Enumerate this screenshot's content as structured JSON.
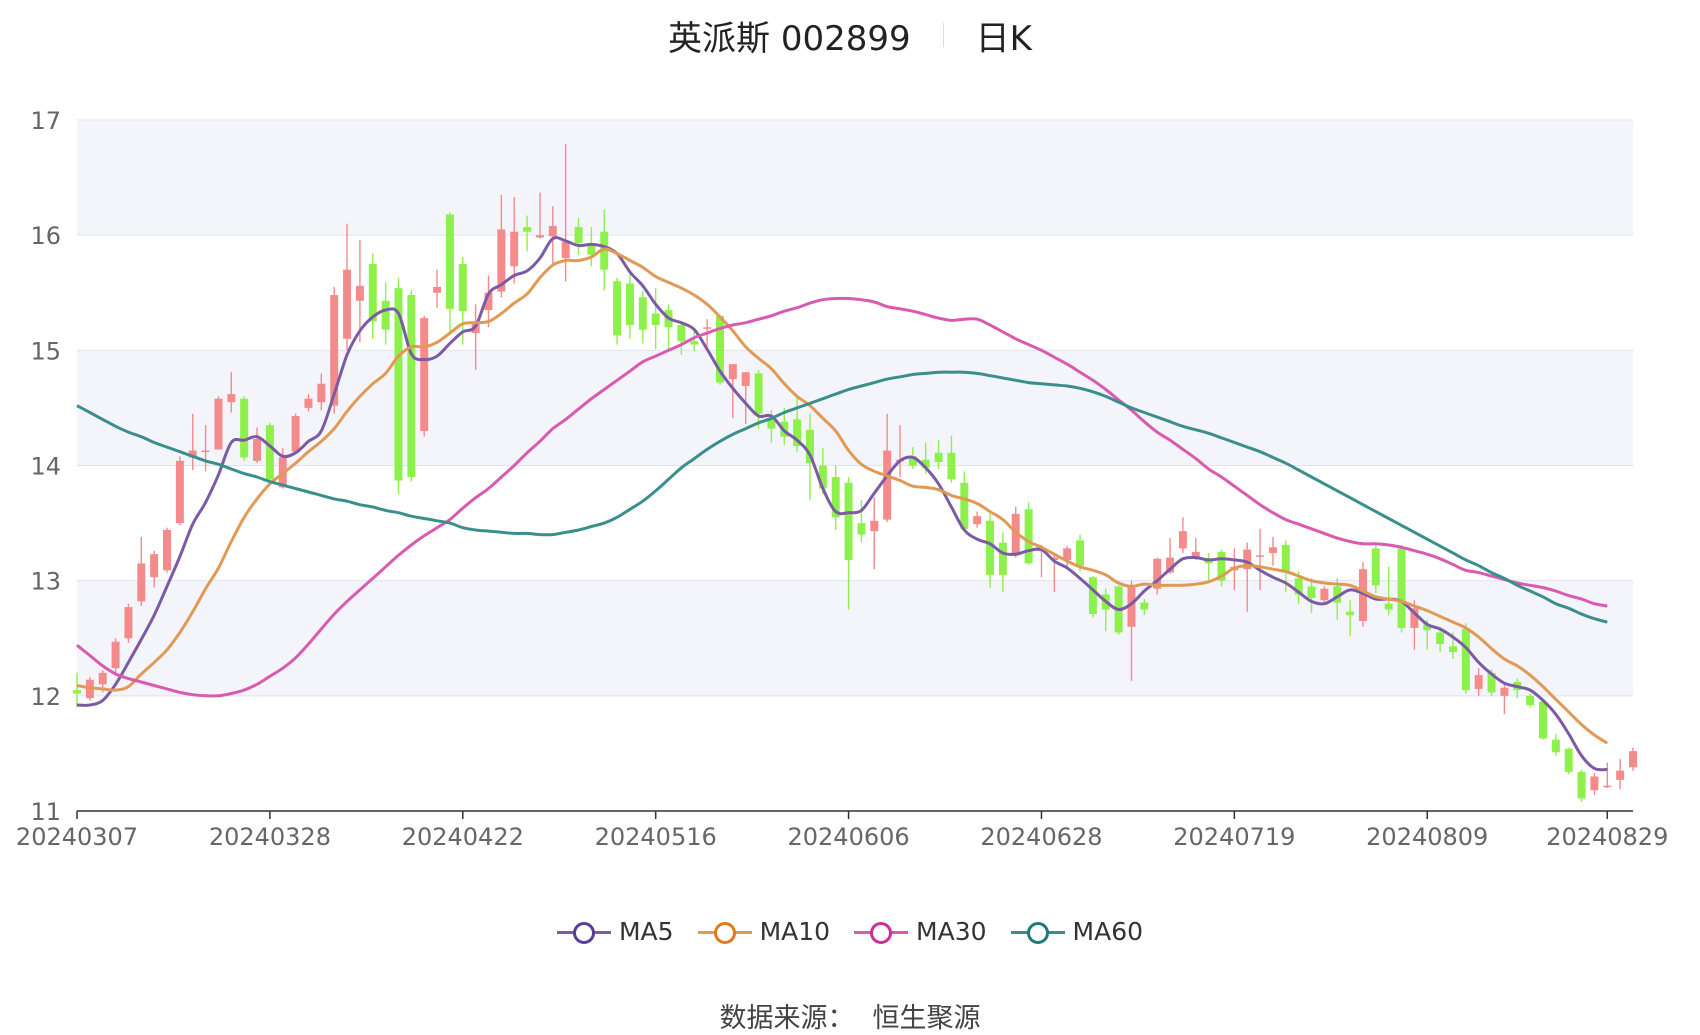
{
  "header": {
    "stock_name": "英派斯 002899",
    "period": "日K"
  },
  "source": {
    "label": "数据来源：",
    "value": "恒生聚源"
  },
  "colors": {
    "up": "#f58a8a",
    "down": "#8ef04a",
    "grid": "#dfe3f3",
    "band": "#f4f5fb",
    "axis": "#666666"
  },
  "chart_data": {
    "type": "candlestick",
    "ylim": [
      11,
      17
    ],
    "yticks": [
      11,
      12,
      13,
      14,
      15,
      16,
      17
    ],
    "x_tick_labels": [
      "20240307",
      "20240328",
      "20240422",
      "20240516",
      "20240606",
      "20240628",
      "20240719",
      "20240809",
      "20240829"
    ],
    "x_tick_index": [
      0,
      15,
      30,
      45,
      60,
      75,
      90,
      105,
      119
    ],
    "legend_position": "bottom",
    "series": [
      {
        "name": "MA5",
        "color": "#7b5aa6",
        "values": [
          11.92,
          11.92,
          11.96,
          12.1,
          12.29,
          12.49,
          12.7,
          12.95,
          13.21,
          13.49,
          13.68,
          13.92,
          14.2,
          14.22,
          14.25,
          14.17,
          14.08,
          14.11,
          14.21,
          14.3,
          14.62,
          14.96,
          15.17,
          15.29,
          15.35,
          15.32,
          14.97,
          14.92,
          14.95,
          15.06,
          15.16,
          15.21,
          15.49,
          15.57,
          15.65,
          15.69,
          15.8,
          15.97,
          15.95,
          15.91,
          15.92,
          15.9,
          15.84,
          15.68,
          15.56,
          15.4,
          15.28,
          15.24,
          15.18,
          15.01,
          14.82,
          14.67,
          14.54,
          14.43,
          14.43,
          14.3,
          14.22,
          14.09,
          13.8,
          13.6,
          13.59,
          13.61,
          13.76,
          13.91,
          14.04,
          14.07,
          13.98,
          13.84,
          13.64,
          13.44,
          13.36,
          13.32,
          13.24,
          13.23,
          13.26,
          13.27,
          13.17,
          13.11,
          13.02,
          12.92,
          12.82,
          12.75,
          12.8,
          12.91,
          13.0,
          13.1,
          13.19,
          13.2,
          13.18,
          13.19,
          13.18,
          13.16,
          13.09,
          13.03,
          12.98,
          12.9,
          12.82,
          12.8,
          12.86,
          12.92,
          12.89,
          12.84,
          12.84,
          12.82,
          12.72,
          12.62,
          12.58,
          12.51,
          12.42,
          12.29,
          12.19,
          12.11,
          12.08,
          12.05,
          11.96,
          11.84,
          11.67,
          11.48,
          11.37,
          11.36
        ]
      },
      {
        "name": "MA10",
        "color": "#e09a55",
        "values": [
          12.09,
          12.07,
          12.06,
          12.05,
          12.08,
          12.19,
          12.29,
          12.4,
          12.55,
          12.73,
          12.93,
          13.11,
          13.34,
          13.55,
          13.71,
          13.84,
          13.93,
          14.02,
          14.12,
          14.21,
          14.32,
          14.47,
          14.6,
          14.71,
          14.8,
          14.95,
          15.03,
          15.03,
          15.07,
          15.15,
          15.23,
          15.24,
          15.25,
          15.32,
          15.41,
          15.49,
          15.63,
          15.74,
          15.78,
          15.78,
          15.81,
          15.88,
          15.84,
          15.78,
          15.72,
          15.64,
          15.59,
          15.54,
          15.48,
          15.4,
          15.29,
          15.17,
          15.03,
          14.93,
          14.84,
          14.71,
          14.6,
          14.52,
          14.41,
          14.3,
          14.13,
          14.01,
          13.95,
          13.91,
          13.87,
          13.82,
          13.81,
          13.79,
          13.74,
          13.71,
          13.67,
          13.6,
          13.53,
          13.42,
          13.34,
          13.29,
          13.23,
          13.17,
          13.12,
          13.09,
          13.05,
          12.98,
          12.95,
          12.97,
          12.96,
          12.96,
          12.96,
          12.97,
          12.99,
          13.04,
          13.11,
          13.13,
          13.12,
          13.1,
          13.08,
          13.04,
          13.0,
          12.98,
          12.97,
          12.96,
          12.91,
          12.86,
          12.84,
          12.82,
          12.78,
          12.74,
          12.69,
          12.64,
          12.59,
          12.51,
          12.41,
          12.32,
          12.26,
          12.18,
          12.08,
          11.97,
          11.86,
          11.75,
          11.66,
          11.59
        ]
      },
      {
        "name": "MA30",
        "color": "#d85bb0",
        "values": [
          12.44,
          12.35,
          12.26,
          12.19,
          12.15,
          12.12,
          12.09,
          12.06,
          12.03,
          12.01,
          12.0,
          12.0,
          12.02,
          12.05,
          12.1,
          12.17,
          12.24,
          12.33,
          12.45,
          12.58,
          12.71,
          12.82,
          12.92,
          13.02,
          13.12,
          13.22,
          13.31,
          13.39,
          13.46,
          13.53,
          13.63,
          13.72,
          13.8,
          13.9,
          14.0,
          14.11,
          14.21,
          14.32,
          14.4,
          14.49,
          14.58,
          14.66,
          14.74,
          14.82,
          14.9,
          14.95,
          15.0,
          15.05,
          15.11,
          15.15,
          15.19,
          15.22,
          15.24,
          15.27,
          15.3,
          15.34,
          15.37,
          15.41,
          15.44,
          15.45,
          15.45,
          15.44,
          15.42,
          15.38,
          15.36,
          15.34,
          15.31,
          15.28,
          15.26,
          15.27,
          15.27,
          15.22,
          15.16,
          15.1,
          15.05,
          15.0,
          14.94,
          14.88,
          14.81,
          14.74,
          14.66,
          14.57,
          14.48,
          14.38,
          14.29,
          14.22,
          14.14,
          14.06,
          13.97,
          13.9,
          13.82,
          13.74,
          13.66,
          13.59,
          13.53,
          13.49,
          13.45,
          13.41,
          13.37,
          13.34,
          13.32,
          13.32,
          13.31,
          13.29,
          13.26,
          13.23,
          13.19,
          13.14,
          13.09,
          13.07,
          13.04,
          13.01,
          12.98,
          12.96,
          12.94,
          12.91,
          12.87,
          12.84,
          12.8,
          12.78
        ]
      },
      {
        "name": "MA60",
        "color": "#3a8f8c",
        "values": [
          14.52,
          14.46,
          14.4,
          14.34,
          14.29,
          14.25,
          14.2,
          14.16,
          14.12,
          14.08,
          14.04,
          14.01,
          13.97,
          13.93,
          13.9,
          13.86,
          13.83,
          13.8,
          13.77,
          13.74,
          13.71,
          13.69,
          13.66,
          13.64,
          13.61,
          13.59,
          13.56,
          13.54,
          13.52,
          13.5,
          13.46,
          13.44,
          13.43,
          13.42,
          13.41,
          13.41,
          13.4,
          13.4,
          13.42,
          13.44,
          13.47,
          13.5,
          13.55,
          13.62,
          13.69,
          13.78,
          13.88,
          13.98,
          14.06,
          14.14,
          14.21,
          14.27,
          14.32,
          14.37,
          14.41,
          14.46,
          14.5,
          14.54,
          14.58,
          14.62,
          14.66,
          14.69,
          14.72,
          14.75,
          14.77,
          14.79,
          14.8,
          14.81,
          14.81,
          14.81,
          14.8,
          14.78,
          14.76,
          14.74,
          14.72,
          14.71,
          14.7,
          14.69,
          14.67,
          14.64,
          14.6,
          14.55,
          14.5,
          14.46,
          14.42,
          14.38,
          14.34,
          14.31,
          14.28,
          14.24,
          14.2,
          14.16,
          14.12,
          14.07,
          14.02,
          13.96,
          13.9,
          13.84,
          13.78,
          13.72,
          13.66,
          13.6,
          13.54,
          13.48,
          13.42,
          13.36,
          13.3,
          13.24,
          13.18,
          13.13,
          13.07,
          13.02,
          12.96,
          12.91,
          12.86,
          12.8,
          12.76,
          12.71,
          12.67,
          12.64
        ]
      }
    ],
    "candles": [
      [
        12.05,
        12.02,
        12.2,
        11.9
      ],
      [
        11.98,
        12.14,
        12.16,
        11.96
      ],
      [
        12.1,
        12.2,
        12.22,
        12.03
      ],
      [
        12.24,
        12.47,
        12.5,
        12.2
      ],
      [
        12.5,
        12.77,
        12.8,
        12.46
      ],
      [
        12.82,
        13.15,
        13.38,
        12.78
      ],
      [
        13.03,
        13.23,
        13.26,
        12.94
      ],
      [
        13.09,
        13.44,
        13.46,
        13.07
      ],
      [
        13.5,
        14.04,
        14.08,
        13.48
      ],
      [
        14.07,
        14.13,
        14.45,
        13.96
      ],
      [
        14.13,
        14.13,
        14.35,
        13.95
      ],
      [
        14.14,
        14.58,
        14.6,
        14.14
      ],
      [
        14.55,
        14.62,
        14.81,
        14.46
      ],
      [
        14.58,
        14.07,
        14.6,
        14.04
      ],
      [
        14.04,
        14.23,
        14.33,
        14.02
      ],
      [
        14.35,
        13.88,
        14.37,
        13.84
      ],
      [
        13.81,
        14.07,
        14.15,
        13.8
      ],
      [
        14.12,
        14.43,
        14.45,
        14.1
      ],
      [
        14.5,
        14.58,
        14.62,
        14.47
      ],
      [
        14.55,
        14.71,
        14.8,
        14.48
      ],
      [
        14.52,
        15.48,
        15.55,
        14.45
      ],
      [
        15.1,
        15.7,
        16.1,
        15.0
      ],
      [
        15.43,
        15.56,
        15.96,
        15.07
      ],
      [
        15.75,
        15.25,
        15.84,
        15.1
      ],
      [
        15.43,
        15.18,
        15.59,
        15.05
      ],
      [
        15.54,
        13.87,
        15.63,
        13.75
      ],
      [
        15.48,
        13.9,
        15.52,
        13.86
      ],
      [
        14.3,
        15.28,
        15.3,
        14.25
      ],
      [
        15.5,
        15.55,
        15.7,
        15.37
      ],
      [
        16.18,
        15.36,
        16.2,
        15.14
      ],
      [
        15.75,
        15.34,
        15.81,
        15.05
      ],
      [
        15.15,
        15.25,
        15.4,
        14.83
      ],
      [
        15.35,
        15.5,
        15.65,
        15.2
      ],
      [
        15.51,
        16.05,
        16.35,
        15.46
      ],
      [
        15.73,
        16.03,
        16.33,
        15.58
      ],
      [
        16.07,
        16.03,
        16.17,
        15.86
      ],
      [
        15.98,
        16.0,
        16.37,
        15.97
      ],
      [
        15.99,
        16.08,
        16.25,
        15.73
      ],
      [
        15.8,
        15.94,
        16.79,
        15.6
      ],
      [
        16.07,
        15.93,
        16.15,
        15.83
      ],
      [
        15.91,
        15.83,
        16.07,
        15.73
      ],
      [
        16.03,
        15.7,
        16.22,
        15.52
      ],
      [
        15.6,
        15.13,
        15.63,
        15.05
      ],
      [
        15.58,
        15.22,
        15.7,
        15.1
      ],
      [
        15.46,
        15.18,
        15.52,
        15.06
      ],
      [
        15.32,
        15.22,
        15.54,
        15.01
      ],
      [
        15.35,
        15.2,
        15.4,
        15.0
      ],
      [
        15.22,
        15.08,
        15.25,
        14.96
      ],
      [
        15.08,
        15.05,
        15.18,
        14.99
      ],
      [
        15.2,
        15.2,
        15.27,
        15.03
      ],
      [
        15.3,
        14.72,
        15.3,
        14.7
      ],
      [
        14.75,
        14.88,
        14.87,
        14.41
      ],
      [
        14.69,
        14.81,
        14.81,
        14.36
      ],
      [
        14.8,
        14.45,
        14.83,
        14.32
      ],
      [
        14.4,
        14.32,
        14.48,
        14.2
      ],
      [
        14.38,
        14.25,
        14.5,
        14.18
      ],
      [
        14.4,
        14.17,
        14.6,
        14.12
      ],
      [
        14.31,
        14.02,
        14.45,
        13.7
      ],
      [
        14.0,
        13.8,
        14.15,
        13.75
      ],
      [
        13.9,
        13.55,
        14.0,
        13.44
      ],
      [
        13.85,
        13.18,
        13.9,
        12.75
      ],
      [
        13.5,
        13.4,
        13.7,
        13.33
      ],
      [
        13.43,
        13.52,
        13.72,
        13.1
      ],
      [
        13.53,
        14.13,
        14.45,
        13.51
      ],
      [
        14.05,
        14.05,
        14.35,
        13.9
      ],
      [
        14.08,
        14.0,
        14.16,
        13.97
      ],
      [
        14.05,
        13.98,
        14.2,
        13.93
      ],
      [
        14.11,
        14.03,
        14.22,
        13.97
      ],
      [
        14.11,
        13.88,
        14.26,
        13.85
      ],
      [
        13.85,
        13.45,
        13.95,
        13.44
      ],
      [
        13.49,
        13.56,
        13.6,
        13.46
      ],
      [
        13.52,
        13.05,
        13.58,
        12.94
      ],
      [
        13.33,
        13.05,
        13.42,
        12.9
      ],
      [
        13.22,
        13.58,
        13.64,
        13.2
      ],
      [
        13.62,
        13.15,
        13.68,
        13.14
      ],
      [
        13.26,
        13.27,
        13.31,
        13.03
      ],
      [
        13.18,
        13.2,
        13.23,
        12.9
      ],
      [
        13.18,
        13.28,
        13.3,
        13.1
      ],
      [
        13.35,
        13.13,
        13.4,
        13.08
      ],
      [
        13.03,
        12.71,
        13.04,
        12.68
      ],
      [
        12.88,
        12.75,
        12.93,
        12.56
      ],
      [
        12.95,
        12.55,
        12.96,
        12.53
      ],
      [
        12.6,
        12.96,
        13.0,
        12.13
      ],
      [
        12.81,
        12.75,
        12.84,
        12.7
      ],
      [
        12.93,
        13.19,
        13.2,
        12.88
      ],
      [
        13.07,
        13.2,
        13.37,
        13.06
      ],
      [
        13.28,
        13.43,
        13.55,
        13.24
      ],
      [
        13.2,
        13.25,
        13.37,
        13.18
      ],
      [
        13.19,
        13.15,
        13.24,
        12.98
      ],
      [
        13.25,
        13.0,
        13.27,
        12.95
      ],
      [
        13.09,
        13.12,
        13.28,
        12.92
      ],
      [
        13.1,
        13.27,
        13.33,
        12.73
      ],
      [
        13.22,
        13.22,
        13.45,
        12.92
      ],
      [
        13.24,
        13.29,
        13.38,
        13.13
      ],
      [
        13.31,
        13.07,
        13.35,
        12.9
      ],
      [
        13.02,
        12.88,
        13.08,
        12.8
      ],
      [
        12.95,
        12.85,
        13.02,
        12.72
      ],
      [
        12.83,
        12.93,
        12.95,
        12.81
      ],
      [
        12.95,
        12.81,
        13.02,
        12.66
      ],
      [
        12.73,
        12.7,
        12.83,
        12.52
      ],
      [
        12.65,
        13.1,
        13.16,
        12.6
      ],
      [
        13.28,
        12.96,
        13.31,
        12.89
      ],
      [
        12.8,
        12.75,
        13.12,
        12.7
      ],
      [
        13.28,
        12.59,
        13.31,
        12.55
      ],
      [
        12.59,
        12.76,
        12.83,
        12.4
      ],
      [
        12.62,
        12.57,
        12.66,
        12.4
      ],
      [
        12.55,
        12.45,
        12.6,
        12.38
      ],
      [
        12.43,
        12.38,
        12.55,
        12.32
      ],
      [
        12.58,
        12.05,
        12.63,
        12.02
      ],
      [
        12.06,
        12.18,
        12.24,
        12.0
      ],
      [
        12.2,
        12.03,
        12.23,
        12.0
      ],
      [
        12.0,
        12.07,
        12.11,
        11.84
      ],
      [
        12.12,
        12.05,
        12.15,
        11.98
      ],
      [
        12.0,
        11.92,
        12.02,
        11.9
      ],
      [
        11.95,
        11.63,
        11.95,
        11.62
      ],
      [
        11.62,
        11.51,
        11.67,
        11.48
      ],
      [
        11.54,
        11.34,
        11.55,
        11.32
      ],
      [
        11.34,
        11.11,
        11.36,
        11.08
      ],
      [
        11.18,
        11.3,
        11.33,
        11.14
      ],
      [
        11.22,
        11.22,
        11.42,
        11.2
      ],
      [
        11.27,
        11.35,
        11.45,
        11.19
      ],
      [
        11.38,
        11.52,
        11.55,
        11.35
      ]
    ]
  }
}
